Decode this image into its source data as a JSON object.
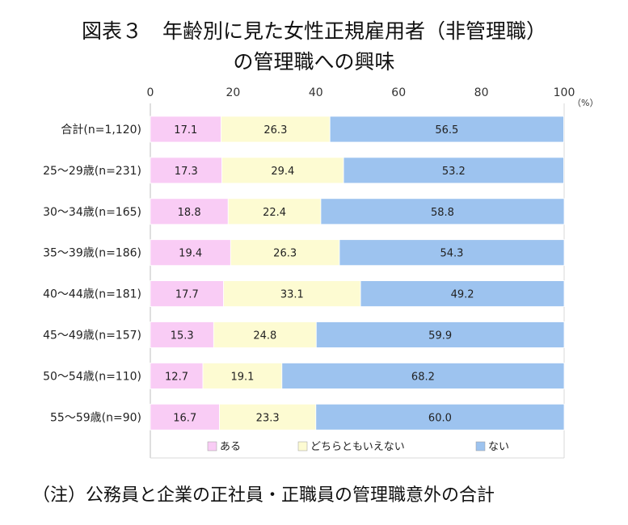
{
  "title": {
    "line1": "図表３　年齢別に見た女性正規雇用者（非管理職）",
    "line2": "の管理職への興味"
  },
  "note": "（注）公務員と企業の正社員・正職員の管理職意外の合計",
  "chart_data": {
    "type": "bar",
    "orientation": "horizontal",
    "stacked": true,
    "unit_label": "（%）",
    "xlim": [
      0,
      100
    ],
    "xticks": [
      "0",
      "20",
      "40",
      "60",
      "80",
      "100"
    ],
    "categories": [
      "合計(n=1,120)",
      "25〜29歳(n=231)",
      "30〜34歳(n=165)",
      "35〜39歳(n=186)",
      "40〜44歳(n=181)",
      "45〜49歳(n=157)",
      "50〜54歳(n=110)",
      "55〜59歳(n=90)"
    ],
    "series": [
      {
        "name": "ある",
        "color": "#f9ccf5",
        "labels": [
          "17.1",
          "17.3",
          "18.8",
          "19.4",
          "17.7",
          "15.3",
          "12.7",
          "16.7"
        ],
        "values": [
          17.1,
          17.3,
          18.8,
          19.4,
          17.7,
          15.3,
          12.7,
          16.7
        ]
      },
      {
        "name": "どちらともいえない",
        "color": "#fdfbd2",
        "labels": [
          "26.3",
          "29.4",
          "22.4",
          "26.3",
          "33.1",
          "24.8",
          "19.1",
          "23.3"
        ],
        "values": [
          26.3,
          29.4,
          22.4,
          26.3,
          33.1,
          24.8,
          19.1,
          23.3
        ]
      },
      {
        "name": "ない",
        "color": "#9dc3ef",
        "labels": [
          "56.5",
          "53.2",
          "58.8",
          "54.3",
          "49.2",
          "59.9",
          "68.2",
          "60.0"
        ],
        "values": [
          56.5,
          53.2,
          58.8,
          54.3,
          49.2,
          59.9,
          68.2,
          60.0
        ]
      }
    ],
    "legend_position": "bottom",
    "grid": false
  }
}
